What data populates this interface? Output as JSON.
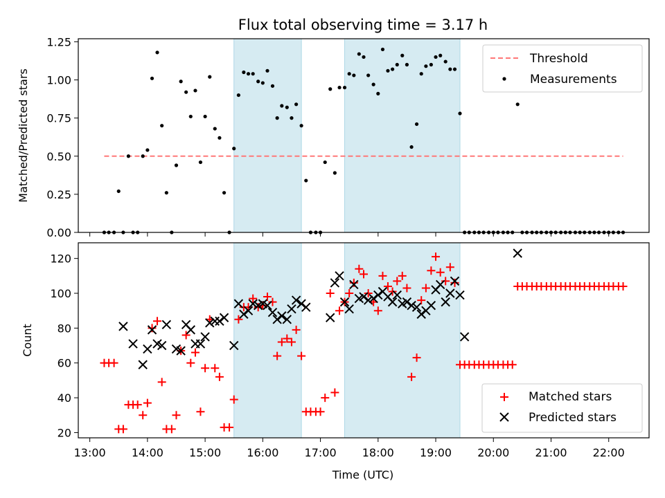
{
  "title": "Flux total observing time = 3.17 h",
  "colors": {
    "threshold": "#ff7777",
    "measurement": "#000000",
    "matched": "#ff0000",
    "predicted": "#000000",
    "shade": "#add8e6"
  },
  "chart_data": [
    {
      "type": "scatter",
      "xlabel": "",
      "ylabel": "Matched/Predicted stars",
      "xlim": [
        12.8,
        22.7
      ],
      "ylim": [
        0,
        1.27
      ],
      "yticks": [
        0,
        0.25,
        0.5,
        0.75,
        1.0,
        1.25
      ],
      "yticklabels": [
        "0.00",
        "0.25",
        "0.50",
        "0.75",
        "1.00",
        "1.25"
      ],
      "legend_position": "top-right",
      "shaded_intervals": [
        [
          15.5,
          16.67
        ],
        [
          17.42,
          19.42
        ]
      ],
      "threshold": {
        "name": "Threshold",
        "x": [
          13.25,
          22.25
        ],
        "y": 0.5
      },
      "series": [
        {
          "name": "Measurements",
          "x": [
            13.25,
            13.33,
            13.42,
            13.5,
            13.58,
            13.67,
            13.75,
            13.83,
            13.92,
            14.0,
            14.08,
            14.17,
            14.25,
            14.33,
            14.42,
            14.5,
            14.58,
            14.67,
            14.75,
            14.83,
            14.92,
            15.0,
            15.08,
            15.17,
            15.25,
            15.33,
            15.42,
            15.5,
            15.58,
            15.67,
            15.75,
            15.83,
            15.92,
            16.0,
            16.08,
            16.17,
            16.25,
            16.33,
            16.42,
            16.5,
            16.58,
            16.67,
            16.75,
            16.83,
            16.92,
            17.0,
            17.08,
            17.17,
            17.25,
            17.33,
            17.42,
            17.5,
            17.58,
            17.67,
            17.75,
            17.83,
            17.92,
            18.0,
            18.08,
            18.17,
            18.25,
            18.33,
            18.42,
            18.5,
            18.58,
            18.67,
            18.75,
            18.83,
            18.92,
            19.0,
            19.08,
            19.17,
            19.25,
            19.33,
            19.42,
            19.5,
            19.58,
            19.67,
            19.75,
            19.83,
            19.92,
            20.0,
            20.08,
            20.17,
            20.25,
            20.33,
            20.42,
            20.5,
            20.58,
            20.67,
            20.75,
            20.83,
            20.92,
            21.0,
            21.08,
            21.17,
            21.25,
            21.33,
            21.42,
            21.5,
            21.58,
            21.67,
            21.75,
            21.83,
            21.92,
            22.0,
            22.08,
            22.17,
            22.25
          ],
          "y": [
            0,
            0,
            0,
            0.27,
            0,
            0.5,
            0,
            0,
            0.5,
            0.54,
            1.01,
            1.18,
            0.7,
            0.26,
            0,
            0.44,
            0.99,
            0.92,
            0.76,
            0.93,
            0.46,
            0.76,
            1.02,
            0.68,
            0.62,
            0.26,
            0,
            0.55,
            0.9,
            1.05,
            1.04,
            1.04,
            0.99,
            0.98,
            1.06,
            0.96,
            0.75,
            0.83,
            0.82,
            0.75,
            0.84,
            0.7,
            0.34,
            0,
            0,
            0,
            0.46,
            0.94,
            0.39,
            0.95,
            0.95,
            1.04,
            1.03,
            1.17,
            1.15,
            1.03,
            0.97,
            0.91,
            1.2,
            1.06,
            1.07,
            1.1,
            1.16,
            1.1,
            0.56,
            0.71,
            1.04,
            1.09,
            1.1,
            1.15,
            1.16,
            1.12,
            1.07,
            1.07,
            0.78,
            0,
            0,
            0,
            0,
            0,
            0,
            0,
            0,
            0,
            0,
            0,
            0.84,
            0,
            0,
            0,
            0,
            0,
            0,
            0,
            0,
            0,
            0,
            0,
            0,
            0,
            0,
            0,
            0,
            0,
            0,
            0,
            0,
            0,
            0
          ]
        }
      ]
    },
    {
      "type": "scatter",
      "xlabel": "Time (UTC)",
      "ylabel": "Count",
      "xlim": [
        12.8,
        22.7
      ],
      "ylim": [
        17,
        129
      ],
      "yticks": [
        20,
        40,
        60,
        80,
        100,
        120
      ],
      "yticklabels": [
        "20",
        "40",
        "60",
        "80",
        "100",
        "120"
      ],
      "xticks": [
        13,
        14,
        15,
        16,
        17,
        18,
        19,
        20,
        21,
        22
      ],
      "xticklabels": [
        "13:00",
        "14:00",
        "15:00",
        "16:00",
        "17:00",
        "18:00",
        "19:00",
        "20:00",
        "21:00",
        "22:00"
      ],
      "legend_position": "bottom-right",
      "shaded_intervals": [
        [
          15.5,
          16.67
        ],
        [
          17.42,
          19.42
        ]
      ],
      "series": [
        {
          "name": "Matched stars",
          "marker": "plus",
          "x": [
            13.25,
            13.33,
            13.42,
            13.5,
            13.58,
            13.67,
            13.75,
            13.83,
            13.92,
            14.0,
            14.08,
            14.17,
            14.25,
            14.33,
            14.42,
            14.5,
            14.58,
            14.67,
            14.75,
            14.83,
            14.92,
            15.0,
            15.08,
            15.17,
            15.25,
            15.33,
            15.42,
            15.5,
            15.58,
            15.67,
            15.75,
            15.83,
            15.92,
            16.0,
            16.08,
            16.17,
            16.25,
            16.33,
            16.42,
            16.5,
            16.58,
            16.67,
            16.75,
            16.83,
            16.92,
            17.0,
            17.08,
            17.17,
            17.25,
            17.33,
            17.42,
            17.5,
            17.58,
            17.67,
            17.75,
            17.83,
            17.92,
            18.0,
            18.08,
            18.17,
            18.25,
            18.33,
            18.42,
            18.5,
            18.58,
            18.67,
            18.75,
            18.83,
            18.92,
            19.0,
            19.08,
            19.17,
            19.25,
            19.33,
            19.42,
            19.5,
            19.58,
            19.67,
            19.75,
            19.83,
            19.92,
            20.0,
            20.08,
            20.17,
            20.25,
            20.33,
            20.42,
            20.5,
            20.58,
            20.67,
            20.75,
            20.83,
            20.92,
            21.0,
            21.08,
            21.17,
            21.25,
            21.33,
            21.42,
            21.5,
            21.58,
            21.67,
            21.75,
            21.83,
            21.92,
            22.0,
            22.08,
            22.17,
            22.25
          ],
          "y": [
            60,
            60,
            60,
            22,
            22,
            36,
            36,
            36,
            30,
            37,
            80,
            84,
            49,
            22,
            22,
            30,
            67,
            76,
            60,
            66,
            32,
            57,
            85,
            57,
            52,
            23,
            23,
            39,
            85,
            92,
            92,
            97,
            92,
            93,
            98,
            95,
            64,
            72,
            74,
            72,
            79,
            64,
            32,
            32,
            32,
            32,
            40,
            100,
            43,
            90,
            95,
            100,
            106,
            114,
            111,
            100,
            95,
            90,
            110,
            104,
            101,
            107,
            110,
            103,
            52,
            63,
            96,
            103,
            113,
            121,
            112,
            107,
            115,
            106,
            59,
            59,
            59,
            59,
            59,
            59,
            59,
            59,
            59,
            59,
            59,
            59,
            104,
            104,
            104,
            104,
            104,
            104,
            104,
            104,
            104,
            104,
            104,
            104,
            104,
            104,
            104,
            104,
            104,
            104,
            104,
            104,
            104,
            104,
            104
          ]
        },
        {
          "name": "Predicted stars",
          "marker": "x",
          "x": [
            13.58,
            13.75,
            13.92,
            14.0,
            14.08,
            14.17,
            14.25,
            14.33,
            14.5,
            14.58,
            14.67,
            14.75,
            14.83,
            14.92,
            15.0,
            15.08,
            15.17,
            15.25,
            15.33,
            15.5,
            15.58,
            15.67,
            15.75,
            15.83,
            15.92,
            16.0,
            16.08,
            16.17,
            16.25,
            16.33,
            16.42,
            16.5,
            16.58,
            16.67,
            16.75,
            17.17,
            17.25,
            17.33,
            17.42,
            17.5,
            17.58,
            17.67,
            17.75,
            17.83,
            17.92,
            18.0,
            18.08,
            18.17,
            18.25,
            18.33,
            18.42,
            18.5,
            18.58,
            18.67,
            18.75,
            18.83,
            18.92,
            19.0,
            19.08,
            19.17,
            19.25,
            19.33,
            19.42,
            19.5,
            20.42
          ],
          "y": [
            81,
            71,
            59,
            68,
            79,
            71,
            70,
            82,
            68,
            67,
            82,
            79,
            71,
            71,
            75,
            83,
            84,
            84,
            86,
            70,
            94,
            88,
            90,
            94,
            93,
            94,
            93,
            89,
            85,
            87,
            85,
            91,
            96,
            94,
            92,
            86,
            106,
            110,
            95,
            91,
            105,
            97,
            98,
            96,
            97,
            99,
            101,
            98,
            95,
            99,
            94,
            95,
            93,
            92,
            88,
            90,
            93,
            102,
            105,
            95,
            100,
            107,
            99,
            75,
            123
          ]
        }
      ]
    }
  ]
}
